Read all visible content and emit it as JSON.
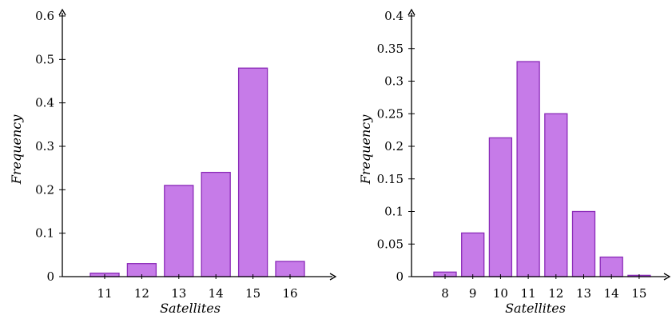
{
  "chart_data": [
    {
      "type": "bar",
      "title": "",
      "xlabel": "Satellites",
      "ylabel": "Frequency",
      "categories": [
        "11",
        "12",
        "13",
        "14",
        "15",
        "16"
      ],
      "values": [
        0.008,
        0.03,
        0.21,
        0.24,
        0.48,
        0.035
      ],
      "ylim": [
        0,
        0.6
      ],
      "yticks": [
        "0",
        "0.1",
        "0.2",
        "0.3",
        "0.4",
        "0.5",
        "0.6"
      ],
      "grid": false,
      "bar_fill": "#c67be8",
      "bar_stroke": "#8a2bb8"
    },
    {
      "type": "bar",
      "title": "",
      "xlabel": "Satellites",
      "ylabel": "Frequency",
      "categories": [
        "8",
        "9",
        "10",
        "11",
        "12",
        "13",
        "14",
        "15"
      ],
      "values": [
        0.007,
        0.067,
        0.213,
        0.33,
        0.25,
        0.1,
        0.03,
        0.002
      ],
      "ylim": [
        0,
        0.4
      ],
      "yticks": [
        "0",
        "0.05",
        "0.1",
        "0.15",
        "0.2",
        "0.25",
        "0.3",
        "0.35",
        "0.4"
      ],
      "grid": false,
      "bar_fill": "#c67be8",
      "bar_stroke": "#8a2bb8"
    }
  ]
}
